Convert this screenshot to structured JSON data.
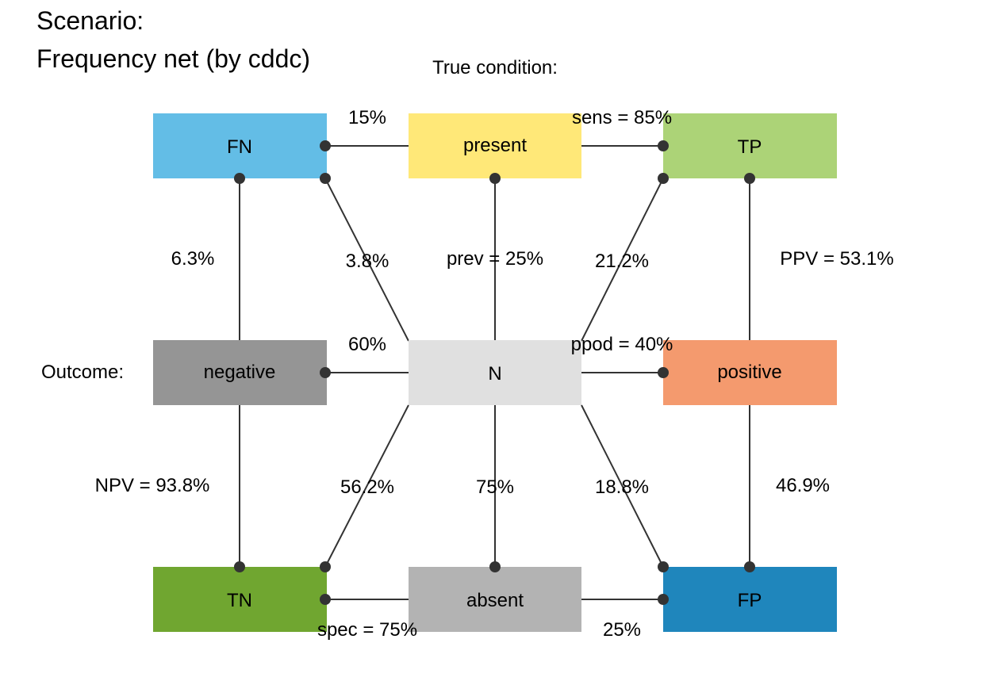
{
  "title": {
    "line1": "Scenario:",
    "line2": "Frequency net (by cddc)"
  },
  "headers": {
    "condition": "True condition:",
    "outcome": "Outcome:"
  },
  "colors": {
    "FN": "#63BDE6",
    "present": "#FFE878",
    "TP": "#ACD377",
    "negative": "#959595",
    "N": "#E0E0E0",
    "positive": "#F49A6E",
    "TN": "#70A630",
    "absent": "#B3B3B3",
    "FP": "#1F86BC",
    "line": "#333333"
  },
  "nodes": {
    "FN": "FN",
    "present": "present",
    "TP": "TP",
    "negative": "negative",
    "N": "N",
    "positive": "positive",
    "TN": "TN",
    "absent": "absent",
    "FP": "FP"
  },
  "edge_labels": {
    "present_FN": "15%",
    "present_TP": "sens = 85%",
    "FN_negative": "6.3%",
    "N_FN": "3.8%",
    "N_present": "prev = 25%",
    "N_TP": "21.2%",
    "TP_positive": "PPV = 53.1%",
    "N_negative": "60%",
    "N_positive": "ppod = 40%",
    "negative_TN": "NPV = 93.8%",
    "N_TN": "56.2%",
    "N_absent": "75%",
    "N_FP": "18.8%",
    "positive_FP": "46.9%",
    "absent_TN": "spec = 75%",
    "absent_FP": "25%"
  }
}
